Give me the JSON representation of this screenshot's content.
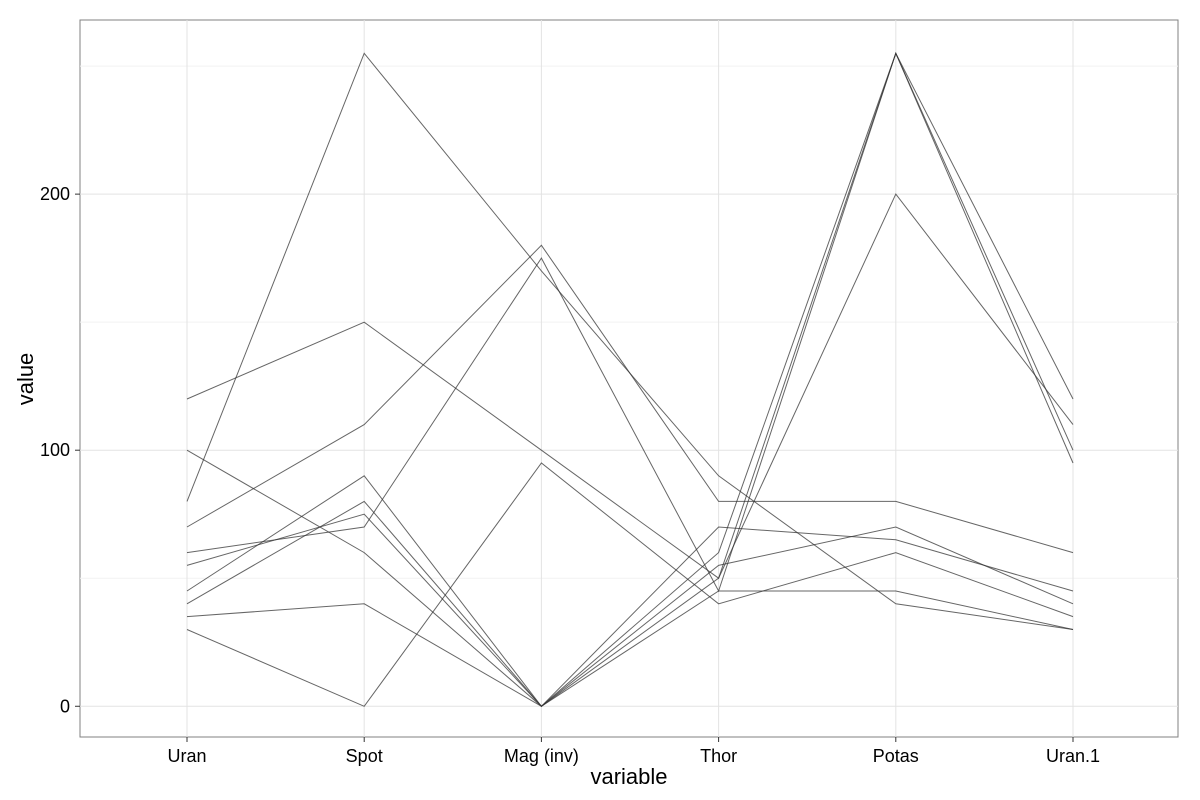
{
  "chart_data": {
    "type": "line",
    "title": "",
    "xlabel": "variable",
    "ylabel": "value",
    "categories": [
      "Uran",
      "Spot",
      "Mag (inv)",
      "Thor",
      "Potas",
      "Uran.1"
    ],
    "ylim": [
      -12,
      268
    ],
    "yticks": [
      0,
      100,
      200
    ],
    "grid": true,
    "legend": "none",
    "line_color": "#333333",
    "series": [
      {
        "values": [
          45,
          90,
          0,
          60,
          255,
          100
        ]
      },
      {
        "values": [
          60,
          70,
          175,
          45,
          255,
          120
        ]
      },
      {
        "values": [
          40,
          80,
          0,
          55,
          70,
          40
        ]
      },
      {
        "values": [
          100,
          60,
          0,
          70,
          65,
          45
        ]
      },
      {
        "values": [
          80,
          255,
          170,
          90,
          40,
          30
        ]
      },
      {
        "values": [
          30,
          0,
          95,
          40,
          60,
          35
        ]
      },
      {
        "values": [
          120,
          150,
          100,
          50,
          200,
          110
        ]
      },
      {
        "values": [
          55,
          75,
          0,
          50,
          255,
          95
        ]
      },
      {
        "values": [
          70,
          110,
          180,
          80,
          80,
          60
        ]
      },
      {
        "values": [
          35,
          40,
          0,
          45,
          45,
          30
        ]
      }
    ]
  }
}
